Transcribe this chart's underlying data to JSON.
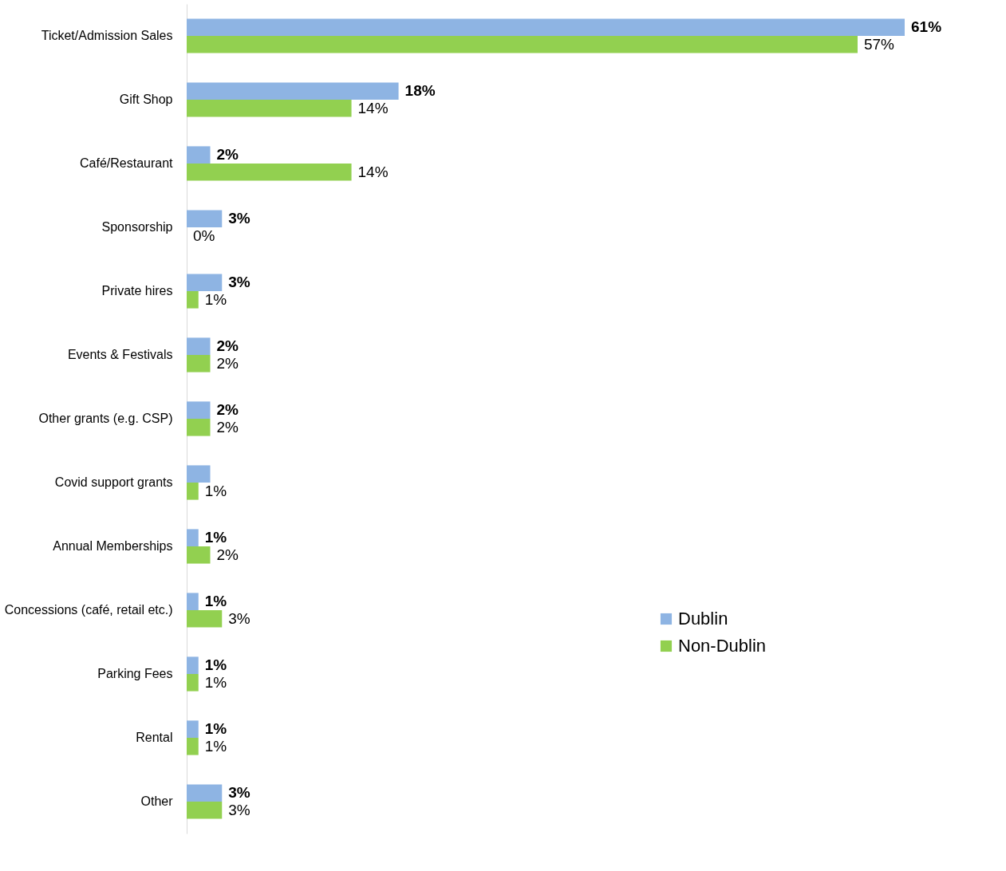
{
  "chart_data": {
    "type": "bar",
    "orientation": "horizontal",
    "legend": "right",
    "categories": [
      "Ticket/Admission Sales",
      "Gift Shop",
      "Café/Restaurant",
      "Sponsorship",
      "Private hires",
      "Events & Festivals",
      "Other grants (e.g. CSP)",
      "Covid support grants",
      "Annual Memberships",
      "Concessions (café, retail etc.)",
      "Parking Fees",
      "Rental",
      "Other"
    ],
    "series": [
      {
        "name": "Dublin",
        "color": "#8eb4e3",
        "values": [
          61,
          18,
          2,
          3,
          3,
          2,
          2,
          2,
          1,
          1,
          1,
          1,
          3
        ],
        "value_labels": [
          "61%",
          "18%",
          "2%",
          "3%",
          "3%",
          "2%",
          "2%",
          null,
          "1%",
          "1%",
          "1%",
          "1%",
          "3%"
        ]
      },
      {
        "name": "Non-Dublin",
        "color": "#92d050",
        "values": [
          57,
          14,
          14,
          0,
          1,
          2,
          2,
          1,
          2,
          3,
          1,
          1,
          3
        ],
        "value_labels": [
          "57%",
          "14%",
          "14%",
          "0%",
          "1%",
          "2%",
          "2%",
          "1%",
          "2%",
          "3%",
          "1%",
          "1%",
          "3%"
        ]
      }
    ]
  }
}
